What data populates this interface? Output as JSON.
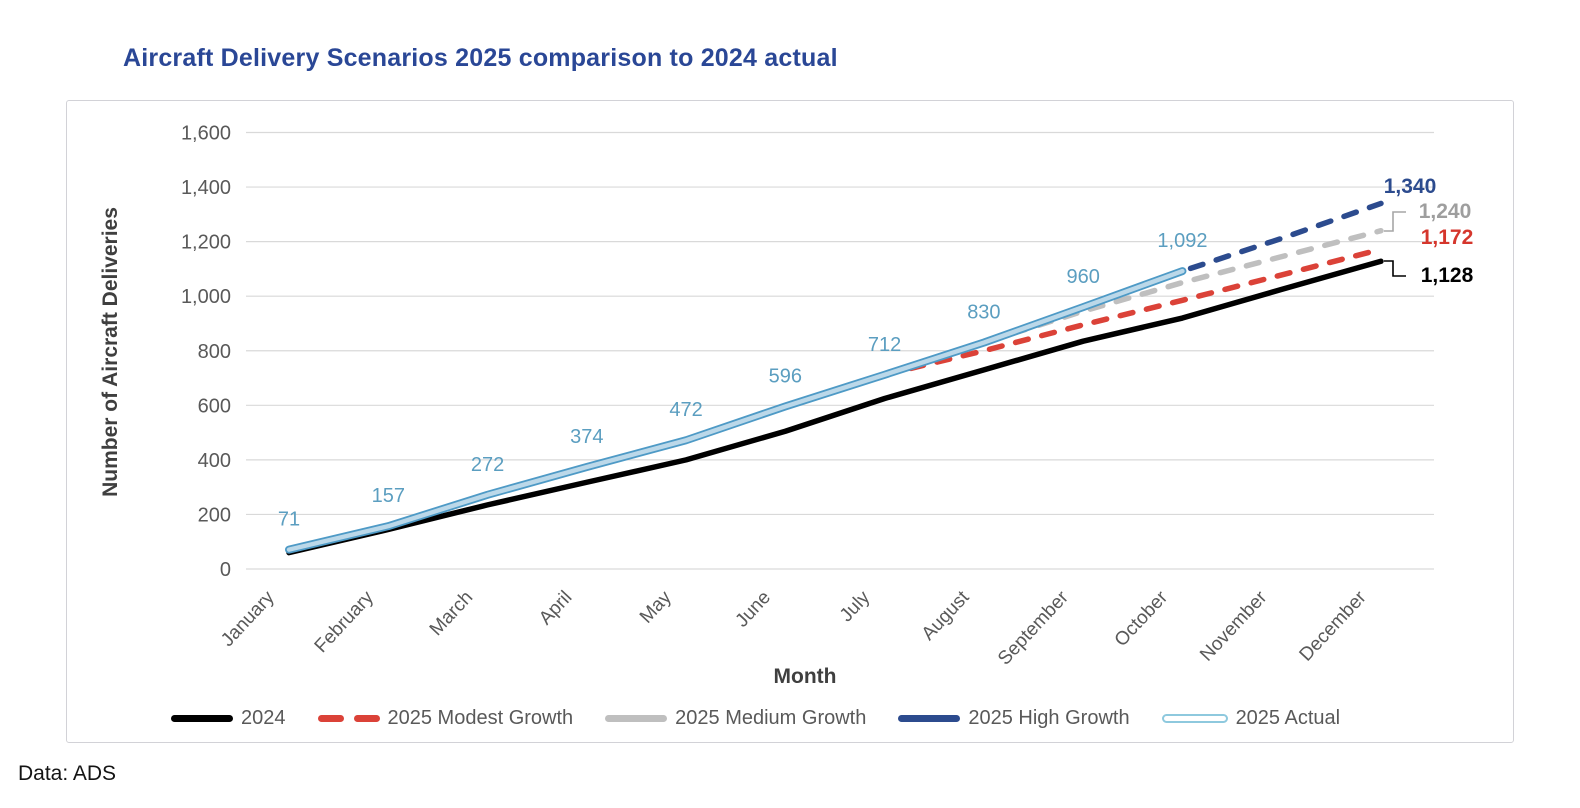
{
  "title": "Aircraft Delivery Scenarios 2025 comparison to 2024 actual",
  "title_color": "#2A4796",
  "source_note": "Data: ADS",
  "chart_data": {
    "type": "line",
    "title": "Aircraft Delivery Scenarios 2025 comparison to 2024 actual",
    "xlabel": "Month",
    "ylabel": "Number of Aircraft Deliveries",
    "ylim": [
      0,
      1600
    ],
    "ytick_step": 200,
    "ytick_labels": [
      "0",
      "200",
      "400",
      "600",
      "800",
      "1,000",
      "1,200",
      "1,400",
      "1,600"
    ],
    "grid": true,
    "legend_position": "bottom",
    "categories": [
      "January",
      "February",
      "March",
      "April",
      "May",
      "June",
      "July",
      "August",
      "September",
      "October",
      "November",
      "December"
    ],
    "series": [
      {
        "name": "2024",
        "color": "#000000",
        "style": "solid",
        "values": [
          60,
          145,
          235,
          318,
          400,
          505,
          625,
          730,
          835,
          920,
          1025,
          1128
        ]
      },
      {
        "name": "2025 Modest Growth",
        "color": "#DB4238",
        "style": "dashed",
        "values": [
          71,
          157,
          272,
          374,
          472,
          596,
          712,
          800,
          895,
          985,
          1078,
          1172
        ]
      },
      {
        "name": "2025 Medium Growth",
        "color": "#BFBFBF",
        "style": "dashed",
        "values": [
          71,
          157,
          272,
          374,
          472,
          596,
          712,
          830,
          945,
          1050,
          1145,
          1240
        ]
      },
      {
        "name": "2025 High Growth",
        "color": "#2C4B8E",
        "style": "dashed",
        "values": [
          71,
          157,
          272,
          374,
          472,
          596,
          712,
          830,
          960,
          1092,
          1212,
          1340
        ]
      },
      {
        "name": "2025 Actual",
        "color": "#4E9AC6",
        "style": "double-line",
        "core_color": "#FFFFFF",
        "values": [
          71,
          157,
          272,
          374,
          472,
          596,
          712,
          830,
          960,
          1092
        ]
      }
    ],
    "data_labels": {
      "series": "2025 Actual",
      "color": "#5B9EC0",
      "values": [
        "71",
        "157",
        "272",
        "374",
        "472",
        "596",
        "712",
        "830",
        "960",
        "1,092"
      ]
    },
    "end_labels": [
      {
        "text": "1,340",
        "color": "#2C4B8E"
      },
      {
        "text": "1,240",
        "color": "#9E9E9E"
      },
      {
        "text": "1,172",
        "color": "#D5362C"
      },
      {
        "text": "1,128",
        "color": "#000000"
      }
    ],
    "gridline_color": "#D9D9D9",
    "tick_label_color": "#595959",
    "axis_title_color": "#3F3F3F"
  }
}
